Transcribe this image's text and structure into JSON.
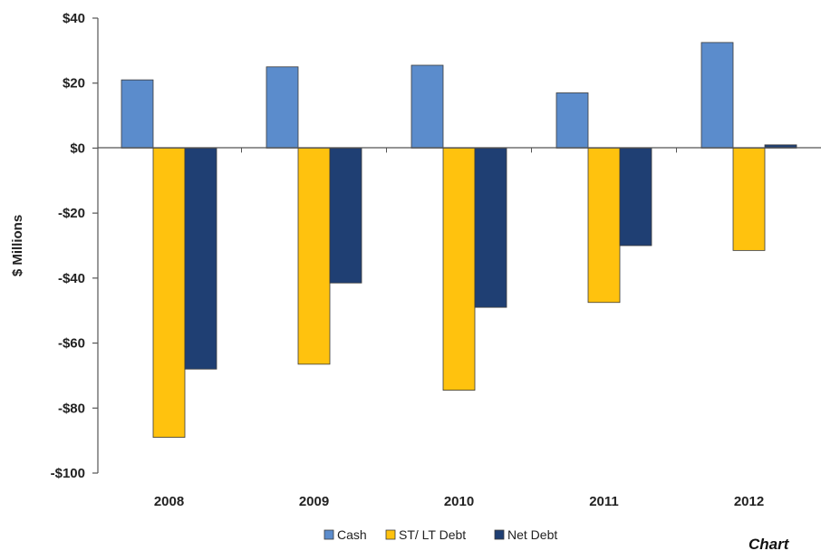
{
  "chart_data": {
    "type": "bar",
    "categories": [
      "2008",
      "2009",
      "2010",
      "2011",
      "2012"
    ],
    "series": [
      {
        "name": "Cash",
        "values": [
          21,
          25,
          25.5,
          17,
          32.5
        ]
      },
      {
        "name": "ST/ LT Debt",
        "values": [
          -89,
          -66.5,
          -74.5,
          -47.5,
          -31.5
        ]
      },
      {
        "name": "Net Debt",
        "values": [
          -68,
          -41.5,
          -49,
          -30,
          1
        ]
      }
    ],
    "ylabel": "$ Millions",
    "xlabel": "",
    "ylim": [
      -100,
      40
    ],
    "yticks": [
      40,
      20,
      0,
      -20,
      -40,
      -60,
      -80,
      -100
    ],
    "ytick_labels": [
      "$40",
      "$20",
      "$0",
      "-$20",
      "-$40",
      "-$60",
      "-$80",
      "-$100"
    ],
    "colors": [
      "#5b8ccc",
      "#ffc20e",
      "#1f3f73"
    ],
    "legend_position": "bottom-center",
    "grid": false,
    "corner_text": "Chart"
  }
}
